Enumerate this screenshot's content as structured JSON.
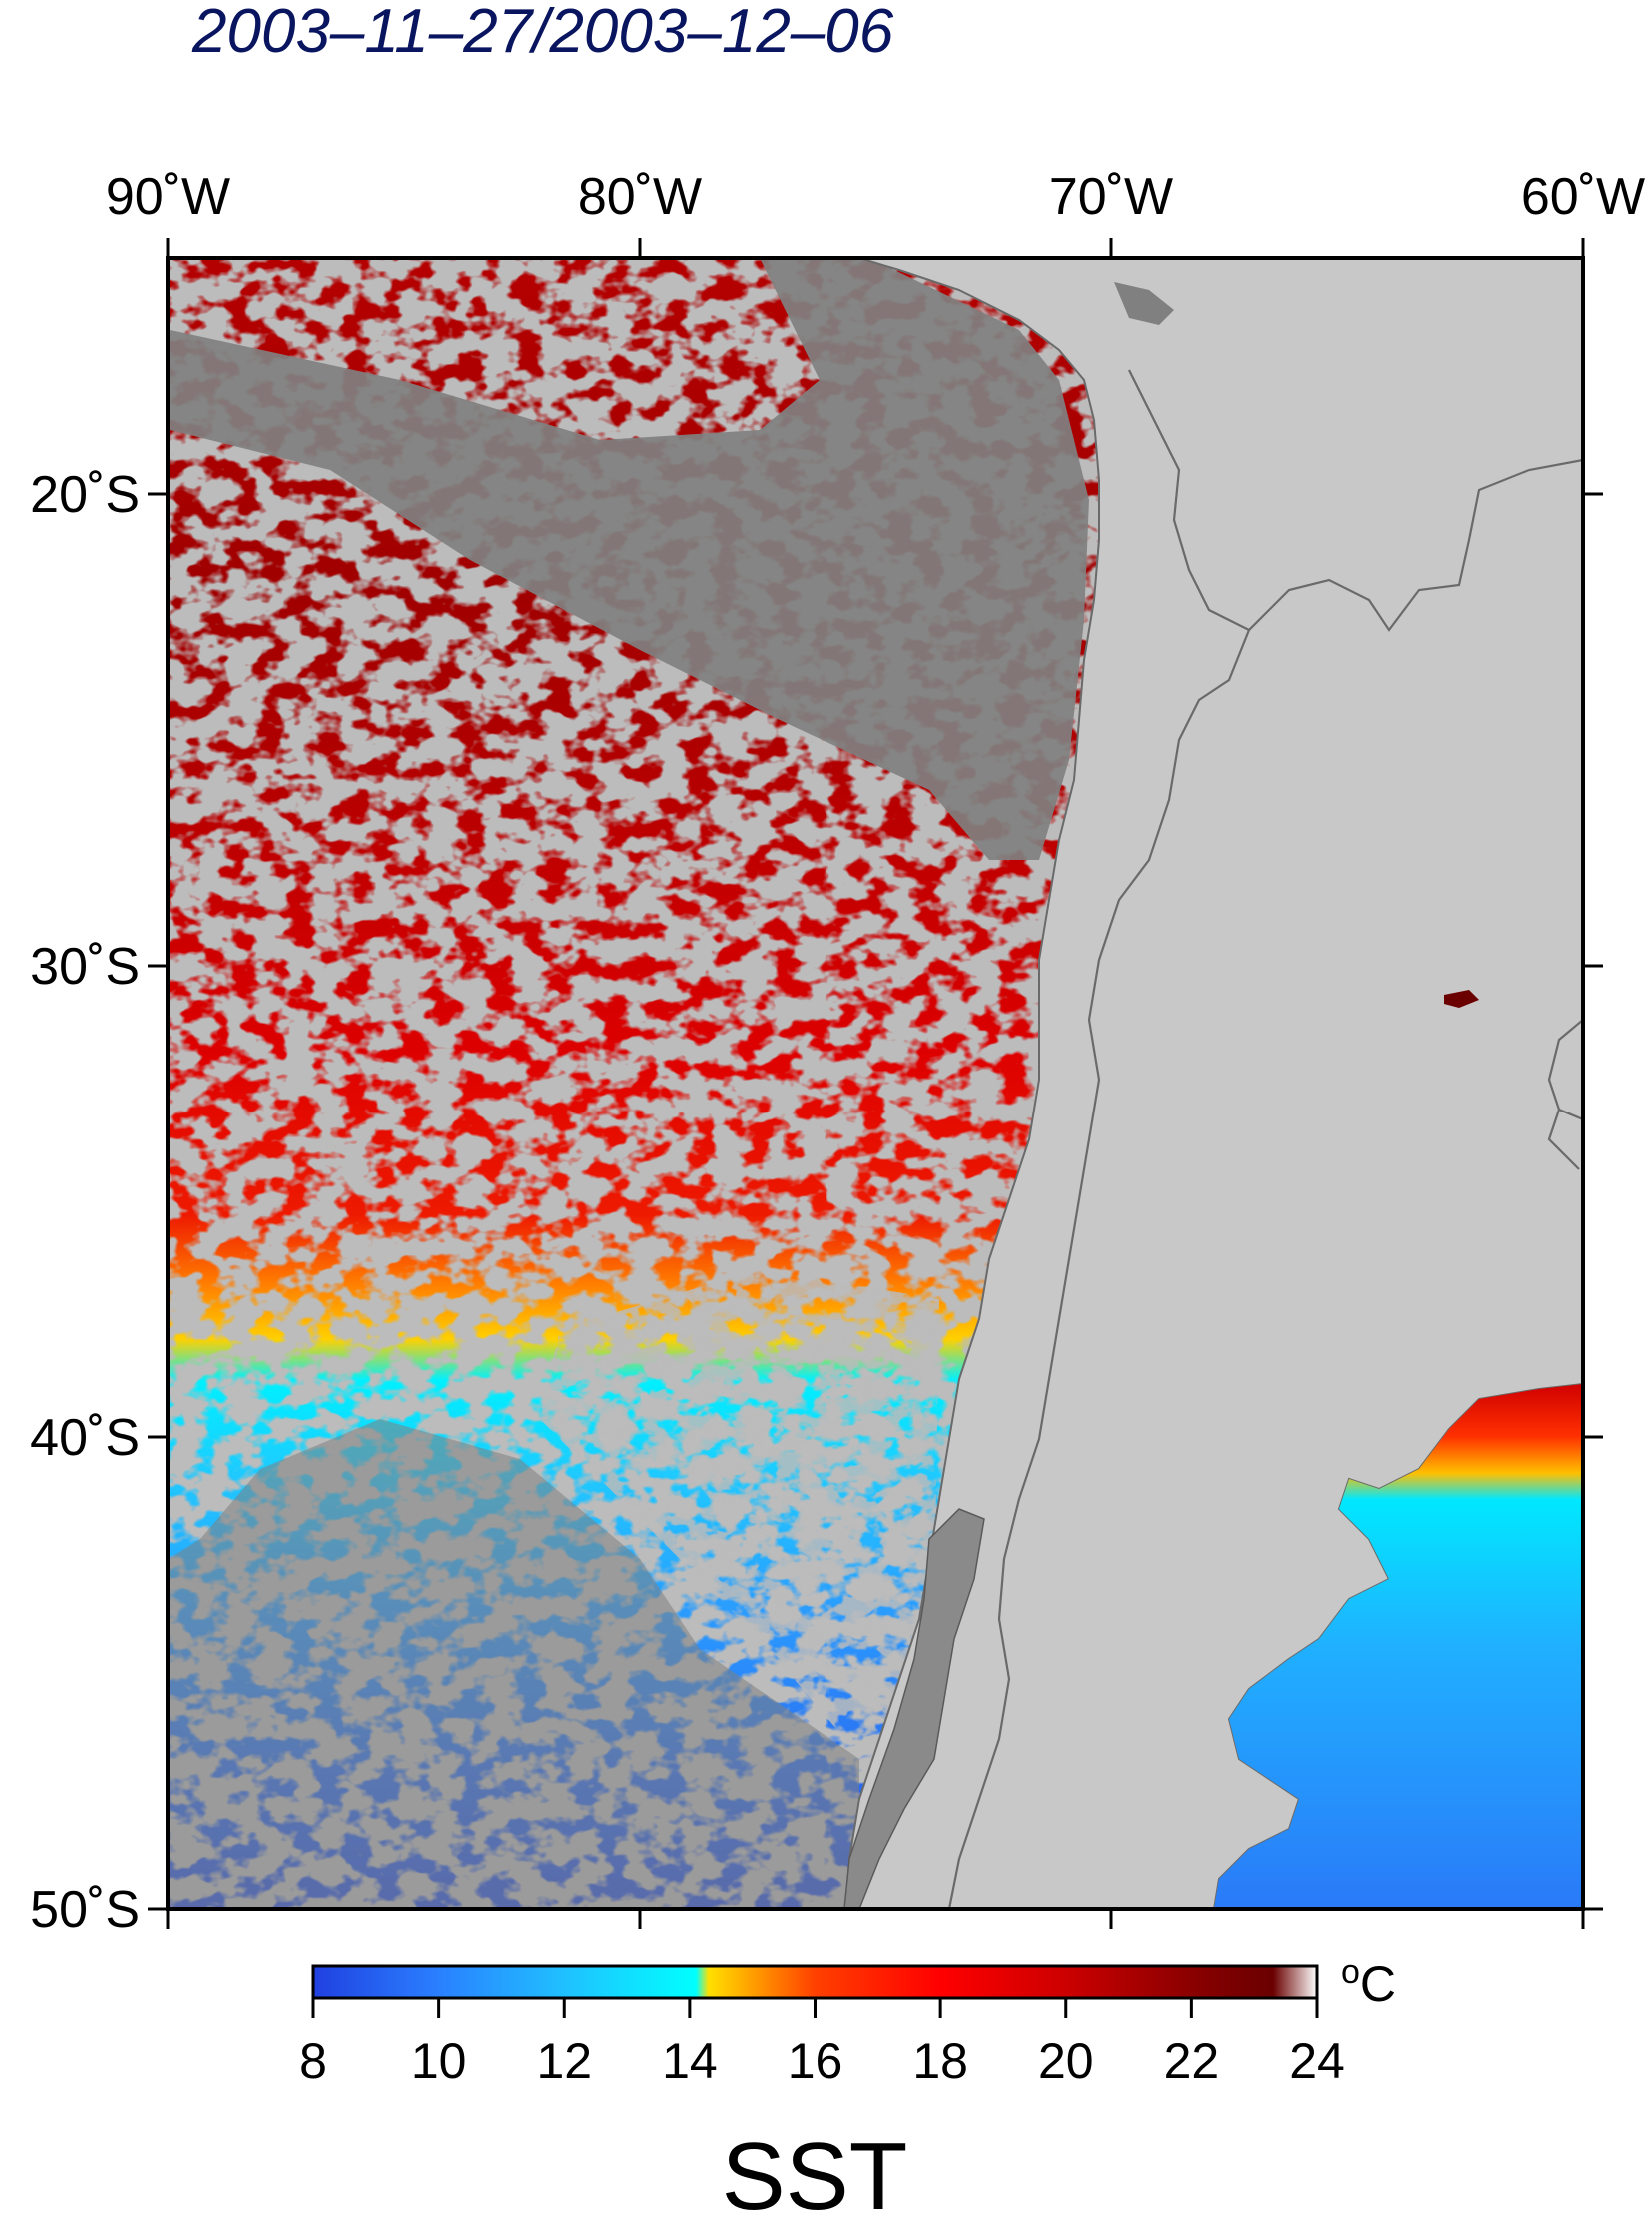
{
  "title": "2003–11–27/2003–12–06",
  "map": {
    "lon_ticks": [
      {
        "value": -90,
        "label": "90˚W"
      },
      {
        "value": -80,
        "label": "80˚W"
      },
      {
        "value": -70,
        "label": "70˚W"
      },
      {
        "value": -60,
        "label": "60˚W"
      }
    ],
    "lat_ticks": [
      {
        "value": -20,
        "label": "20˚S"
      },
      {
        "value": -30,
        "label": "30˚S"
      },
      {
        "value": -40,
        "label": "40˚S"
      },
      {
        "value": -50,
        "label": "50˚S"
      }
    ],
    "lon_range": [
      -90,
      -60
    ],
    "lat_range": [
      -15,
      -50
    ],
    "land_color": "#c8c8c8",
    "nodata_color": "#808080",
    "border_color": "#666666"
  },
  "colorbar": {
    "min": 8,
    "max": 24,
    "ticks": [
      "8",
      "10",
      "12",
      "14",
      "16",
      "18",
      "20",
      "22",
      "24"
    ],
    "unit_sup": "o",
    "unit": "C",
    "stops": [
      {
        "value": 8,
        "color": "#2040e0"
      },
      {
        "value": 10,
        "color": "#2a80ff"
      },
      {
        "value": 12,
        "color": "#20c0ff"
      },
      {
        "value": 14.1,
        "color": "#00ffff"
      },
      {
        "value": 14.3,
        "color": "#ffe000"
      },
      {
        "value": 16,
        "color": "#ff4000"
      },
      {
        "value": 18,
        "color": "#ff0000"
      },
      {
        "value": 20,
        "color": "#cc0000"
      },
      {
        "value": 22,
        "color": "#8a0000"
      },
      {
        "value": 23.3,
        "color": "#6a0000"
      },
      {
        "value": 24,
        "color": "#ffffff"
      }
    ]
  },
  "variable": "SST"
}
